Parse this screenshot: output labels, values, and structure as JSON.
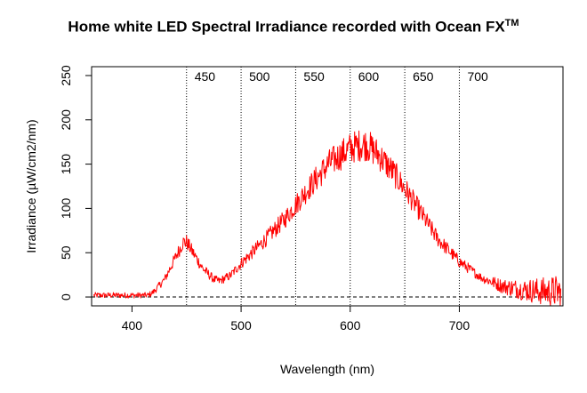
{
  "chart_data": {
    "type": "line",
    "title": "Home white LED Spectral Irradiance recorded with Ocean FX",
    "title_superscript": "TM",
    "xlabel": "Wavelength (nm)",
    "ylabel": "Irradiance (µW/cm2/nm)",
    "xlim": [
      363,
      795
    ],
    "ylim": [
      -10,
      260
    ],
    "x_ticks": [
      400,
      500,
      600,
      700
    ],
    "y_ticks": [
      0,
      50,
      100,
      150,
      200,
      250
    ],
    "x_tick_labels": [
      "400",
      "500",
      "600",
      "700"
    ],
    "y_tick_labels": [
      "0",
      "50",
      "100",
      "150",
      "200",
      "250"
    ],
    "reference_lines": {
      "vertical_dotted_at": [
        450,
        500,
        550,
        600,
        650,
        700
      ],
      "vertical_labels": [
        "450",
        "500",
        "550",
        "600",
        "650",
        "700"
      ],
      "horizontal_dashed_at": 0
    },
    "series": [
      {
        "color": "#ff0000",
        "style": "noisy line",
        "x": [
          365,
          380,
          400,
          415,
          420,
          430,
          440,
          447,
          450,
          455,
          465,
          475,
          480,
          490,
          500,
          510,
          520,
          540,
          560,
          580,
          600,
          610,
          615,
          625,
          640,
          660,
          680,
          700,
          720,
          740,
          760,
          780,
          793
        ],
        "y": [
          2,
          2,
          2,
          2,
          6,
          20,
          45,
          62,
          62,
          52,
          32,
          20,
          18,
          24,
          38,
          50,
          62,
          88,
          120,
          150,
          168,
          172,
          172,
          162,
          140,
          104,
          66,
          40,
          22,
          12,
          8,
          6,
          6
        ]
      }
    ]
  }
}
